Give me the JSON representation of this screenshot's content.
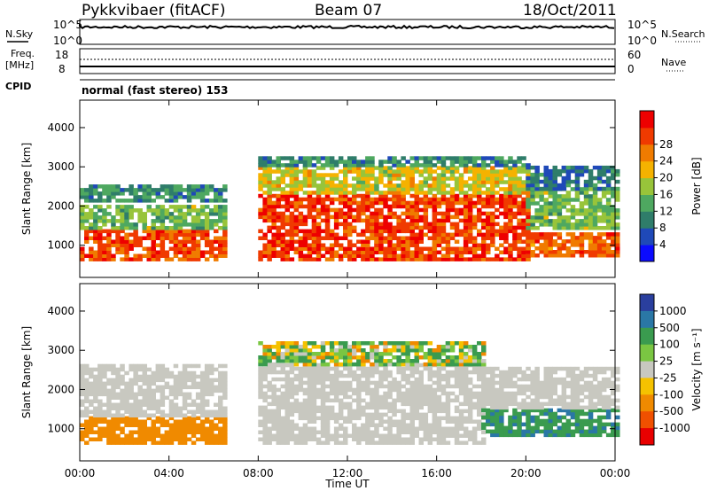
{
  "header": {
    "station": "Pykkvibaer (fitACF)",
    "beam": "Beam 07",
    "date": "18/Oct/2011"
  },
  "status_panels": {
    "nsky_label": "N.Sky",
    "nsky_ticks": [
      "10^5",
      "10^0"
    ],
    "nsearch_label": "N.Search",
    "nsearch_ticks": [
      "10^5",
      "10^0"
    ],
    "freq_label": "Freq.",
    "freq_unit": "[MHz]",
    "freq_ticks": [
      "18",
      "8"
    ],
    "nave_label": "Nave",
    "nave_ticks": [
      "60",
      "0"
    ],
    "cpid_label": "CPID",
    "cpid_text": "normal (fast stereo) 153"
  },
  "colors": {
    "power_scale": [
      "#0b0bff",
      "#1f49b8",
      "#2f7d6a",
      "#4ea860",
      "#98c43a",
      "#f5b200",
      "#f07b00",
      "#f03a00",
      "#ee0000"
    ],
    "velocity_scale": [
      "#2a3f9e",
      "#2a77a6",
      "#3a9b4f",
      "#7ac642",
      "#c8c8c0",
      "#f5c200",
      "#f08a00",
      "#f05000",
      "#e80000"
    ]
  },
  "chart_data": [
    {
      "type": "heatmap",
      "name": "power",
      "ylabel": "Slant Range [km]",
      "xlabel": "",
      "ylim": [
        180,
        4700
      ],
      "xlim": [
        0,
        24
      ],
      "yticks": [
        1000,
        2000,
        3000,
        4000
      ],
      "xticks": [
        0,
        4,
        8,
        12,
        16,
        20,
        24
      ],
      "colorbar_label": "Power [dB]",
      "colorbar_ticks": [
        "4",
        "8",
        "12",
        "16",
        "20",
        "24",
        "28"
      ],
      "colorbar_range": [
        0,
        32
      ],
      "bands": [
        {
          "t0": 0,
          "t1": 6.5,
          "r0": 600,
          "r1": 1350,
          "level": 26
        },
        {
          "t0": 0,
          "t1": 6.5,
          "r0": 1400,
          "r1": 2000,
          "level": 14
        },
        {
          "t0": 0,
          "t1": 6.5,
          "r0": 2100,
          "r1": 2500,
          "level": 10
        },
        {
          "t0": 8,
          "t1": 20,
          "r0": 600,
          "r1": 2300,
          "level": 27
        },
        {
          "t0": 8,
          "t1": 20,
          "r0": 2300,
          "r1": 3000,
          "level": 18
        },
        {
          "t0": 8,
          "t1": 20,
          "r0": 3000,
          "r1": 3200,
          "level": 10
        },
        {
          "t0": 20,
          "t1": 24,
          "r0": 700,
          "r1": 1300,
          "level": 25
        },
        {
          "t0": 20,
          "t1": 24,
          "r0": 1400,
          "r1": 2400,
          "level": 14
        },
        {
          "t0": 20,
          "t1": 24,
          "r0": 2400,
          "r1": 3000,
          "level": 8
        }
      ]
    },
    {
      "type": "heatmap",
      "name": "velocity",
      "ylabel": "Slant Range [km]",
      "xlabel": "Time UT",
      "ylim": [
        180,
        4700
      ],
      "xlim": [
        0,
        24
      ],
      "yticks": [
        1000,
        2000,
        3000,
        4000
      ],
      "xticks": [
        0,
        4,
        8,
        12,
        16,
        20,
        24
      ],
      "xticklabels": [
        "00:00",
        "04:00",
        "08:00",
        "12:00",
        "16:00",
        "20:00",
        "00:00"
      ],
      "colorbar_label": "Velocity [m s⁻¹]",
      "colorbar_ticks": [
        "1000",
        "500",
        "100",
        "25",
        "-25",
        "-100",
        "-500",
        "-1000"
      ],
      "bands": [
        {
          "t0": 0,
          "t1": 6.5,
          "r0": 600,
          "r1": 1300,
          "level": -300
        },
        {
          "t0": 0,
          "t1": 6.5,
          "r0": 1300,
          "r1": 2600,
          "level": 0
        },
        {
          "t0": 8,
          "t1": 18,
          "r0": 600,
          "r1": 2600,
          "level": 0
        },
        {
          "t0": 8,
          "t1": 18,
          "r0": 2600,
          "r1": 3200,
          "level": 50
        },
        {
          "t0": 18,
          "t1": 24,
          "r0": 800,
          "r1": 1500,
          "level": 400
        },
        {
          "t0": 18,
          "t1": 24,
          "r0": 1500,
          "r1": 2500,
          "level": 0
        }
      ]
    }
  ]
}
